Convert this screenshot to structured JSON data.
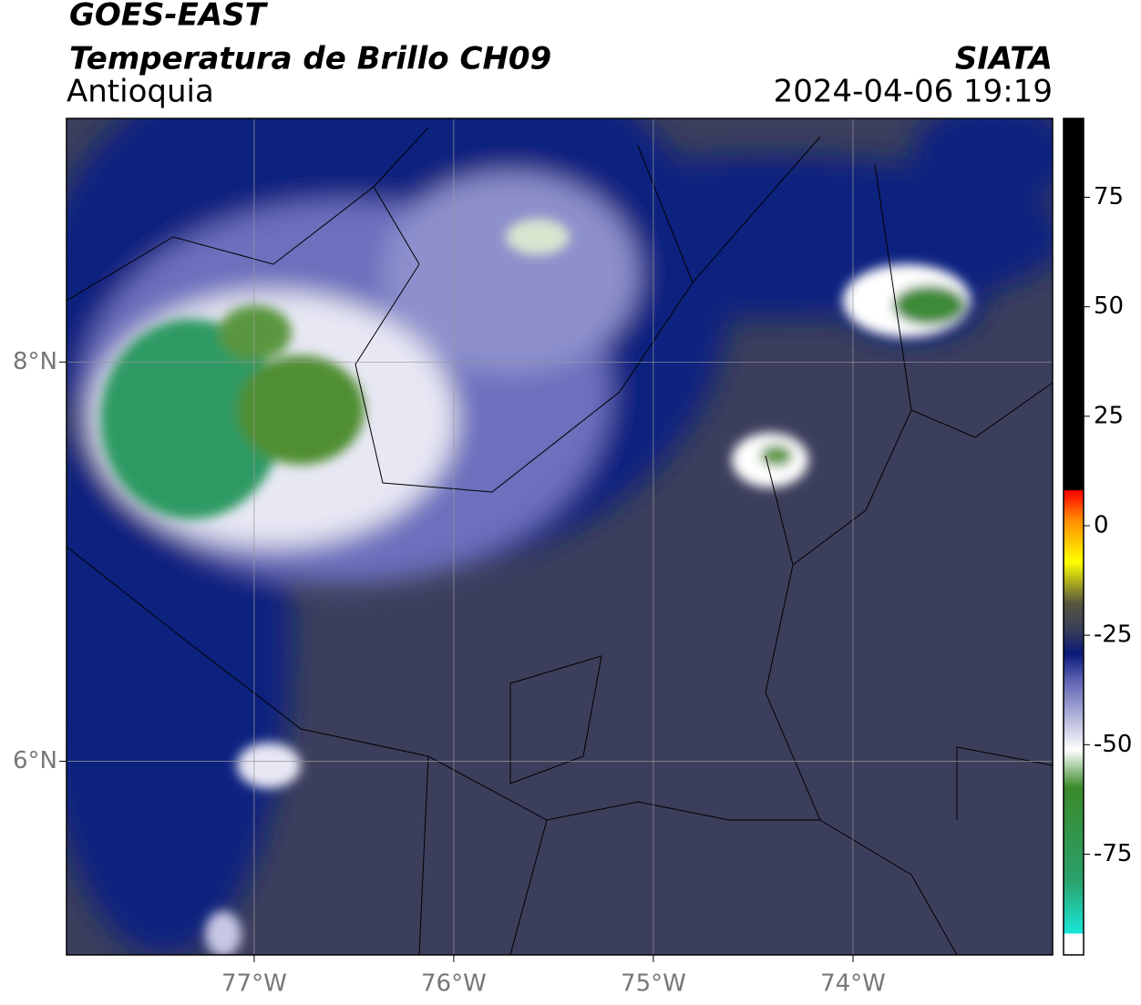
{
  "header": {
    "title": "GOES-EAST",
    "subtitle": "Temperatura de Brillo CH09",
    "region": "Antioquia",
    "source": "SIATA",
    "datetime": "2024-04-06 19:19"
  },
  "map": {
    "xlim": [
      -77.94,
      -73.0
    ],
    "ylim": [
      5.03,
      9.22
    ],
    "xticks": [
      {
        "value": -77,
        "label": "77°W"
      },
      {
        "value": -76,
        "label": "76°W"
      },
      {
        "value": -75,
        "label": "75°W"
      },
      {
        "value": -74,
        "label": "74°W"
      }
    ],
    "yticks": [
      {
        "value": 8,
        "label": "8°N"
      },
      {
        "value": 6,
        "label": "6°N"
      }
    ]
  },
  "colorbar": {
    "lim": [
      -98,
      93
    ],
    "ticks": [
      75,
      50,
      25,
      0,
      -25,
      -50,
      -75
    ]
  }
}
